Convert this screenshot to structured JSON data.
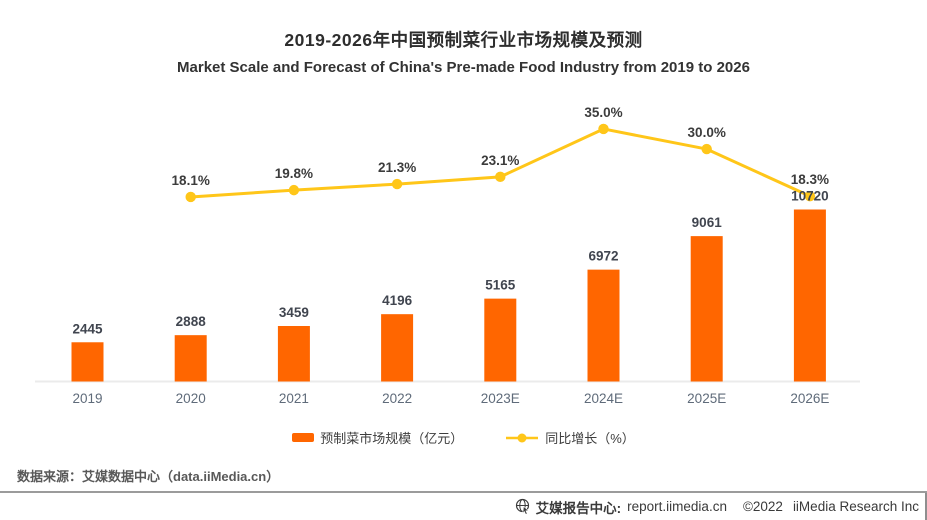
{
  "header": {
    "title_cn": "2019-2026年中国预制菜行业市场规模及预测",
    "title_en": "Market Scale and Forecast of China's Pre-made Food Industry from 2019 to 2026"
  },
  "chart_data": {
    "type": "bar",
    "title": "2019-2026年中国预制菜行业市场规模及预测",
    "subtitle": "Market Scale and Forecast of China's Pre-made Food Industry from 2019 to 2026",
    "categories": [
      "2019",
      "2020",
      "2021",
      "2022",
      "2023E",
      "2024E",
      "2025E",
      "2026E"
    ],
    "series": [
      {
        "name": "预制菜市场规模（亿元）",
        "type": "bar",
        "values": [
          2445,
          2888,
          3459,
          4196,
          5165,
          6972,
          9061,
          10720
        ],
        "color": "#FF6600"
      },
      {
        "name": "同比增长（%）",
        "type": "line",
        "categories": [
          "2020",
          "2021",
          "2022",
          "2023E",
          "2024E",
          "2025E",
          "2026E"
        ],
        "values": [
          18.1,
          19.8,
          21.3,
          23.1,
          35.0,
          30.0,
          18.3
        ],
        "color": "#FFC619"
      }
    ],
    "value_labels": [
      "2445",
      "2888",
      "3459",
      "4196",
      "5165",
      "6972",
      "9061",
      "10720"
    ],
    "growth_labels": [
      "18.1%",
      "19.8%",
      "21.3%",
      "23.1%",
      "35.0%",
      "30.0%",
      "18.3%"
    ],
    "xlabel": "",
    "ylabel": "",
    "grid": false,
    "legend_position": "bottom",
    "y_left_unit": "亿元",
    "y_right_unit": "%"
  },
  "source_note": "数据来源：艾媒数据中心（data.iiMedia.cn）",
  "bottom_bar": {
    "brand": "艾媒报告中心:",
    "url": "report.iimedia.cn",
    "copyright": "©2022",
    "company": "iiMedia Research Inc"
  },
  "colors": {
    "bar": "#FF6600",
    "line": "#FFC619",
    "axis": "#ebebeb",
    "tick_label": "#5f6b7a"
  }
}
